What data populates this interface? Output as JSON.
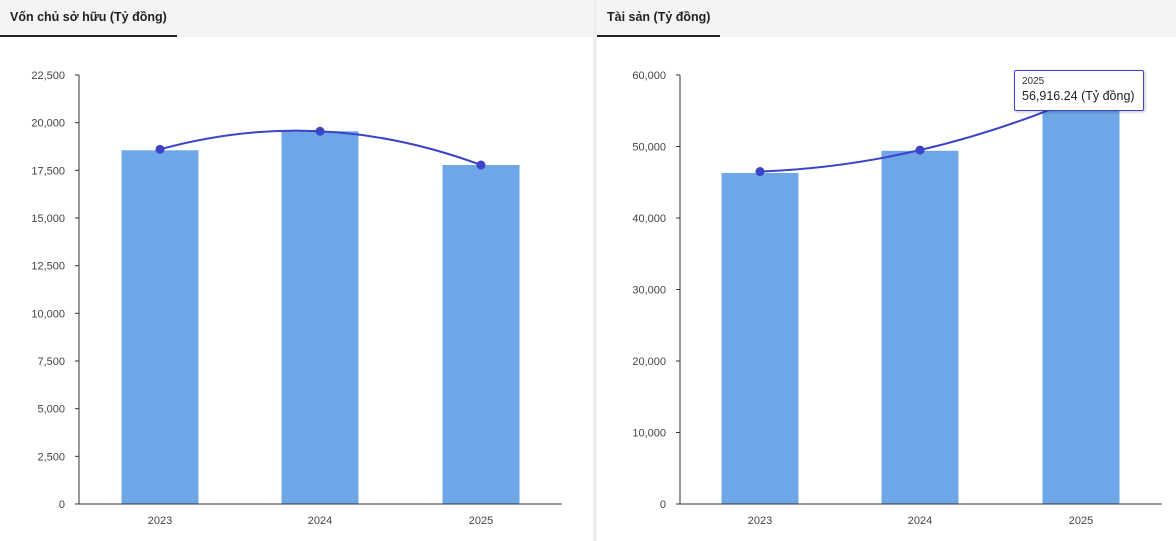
{
  "colors": {
    "bar": "#6ea6e8",
    "line": "#3b43c9",
    "axis": "#333333",
    "tab_bg": "#f4f4f4"
  },
  "panels": [
    {
      "title": "Vốn chủ sở hữu (Tỷ đồng)"
    },
    {
      "title": "Tài sản (Tỷ đồng)"
    }
  ],
  "tooltip": {
    "year": "2025",
    "value": "56,916.24 (Tỷ đồng)"
  },
  "chart_data": [
    {
      "type": "bar",
      "title": "Vốn chủ sở hữu (Tỷ đồng)",
      "categories": [
        "2023",
        "2024",
        "2025"
      ],
      "bar_values": [
        18550,
        19550,
        17780
      ],
      "line_values": [
        18600,
        19550,
        17780
      ],
      "ylim": [
        0,
        22500
      ],
      "yticks": [
        0,
        2500,
        5000,
        7500,
        10000,
        12500,
        15000,
        17500,
        20000,
        22500
      ],
      "ytick_labels": [
        "0",
        "2,500",
        "5,000",
        "7,500",
        "10,000",
        "12,500",
        "15,000",
        "17,500",
        "20,000",
        "22,500"
      ],
      "grid": false
    },
    {
      "type": "bar",
      "title": "Tài sản (Tỷ đồng)",
      "categories": [
        "2023",
        "2024",
        "2025"
      ],
      "bar_values": [
        46300,
        49400,
        56916.24
      ],
      "line_values": [
        46500,
        49500,
        56916.24
      ],
      "ylim": [
        0,
        60000
      ],
      "yticks": [
        0,
        10000,
        20000,
        30000,
        40000,
        50000,
        60000
      ],
      "ytick_labels": [
        "0",
        "10,000",
        "20,000",
        "30,000",
        "40,000",
        "50,000",
        "60,000"
      ],
      "grid": false,
      "highlight_index": 2
    }
  ]
}
